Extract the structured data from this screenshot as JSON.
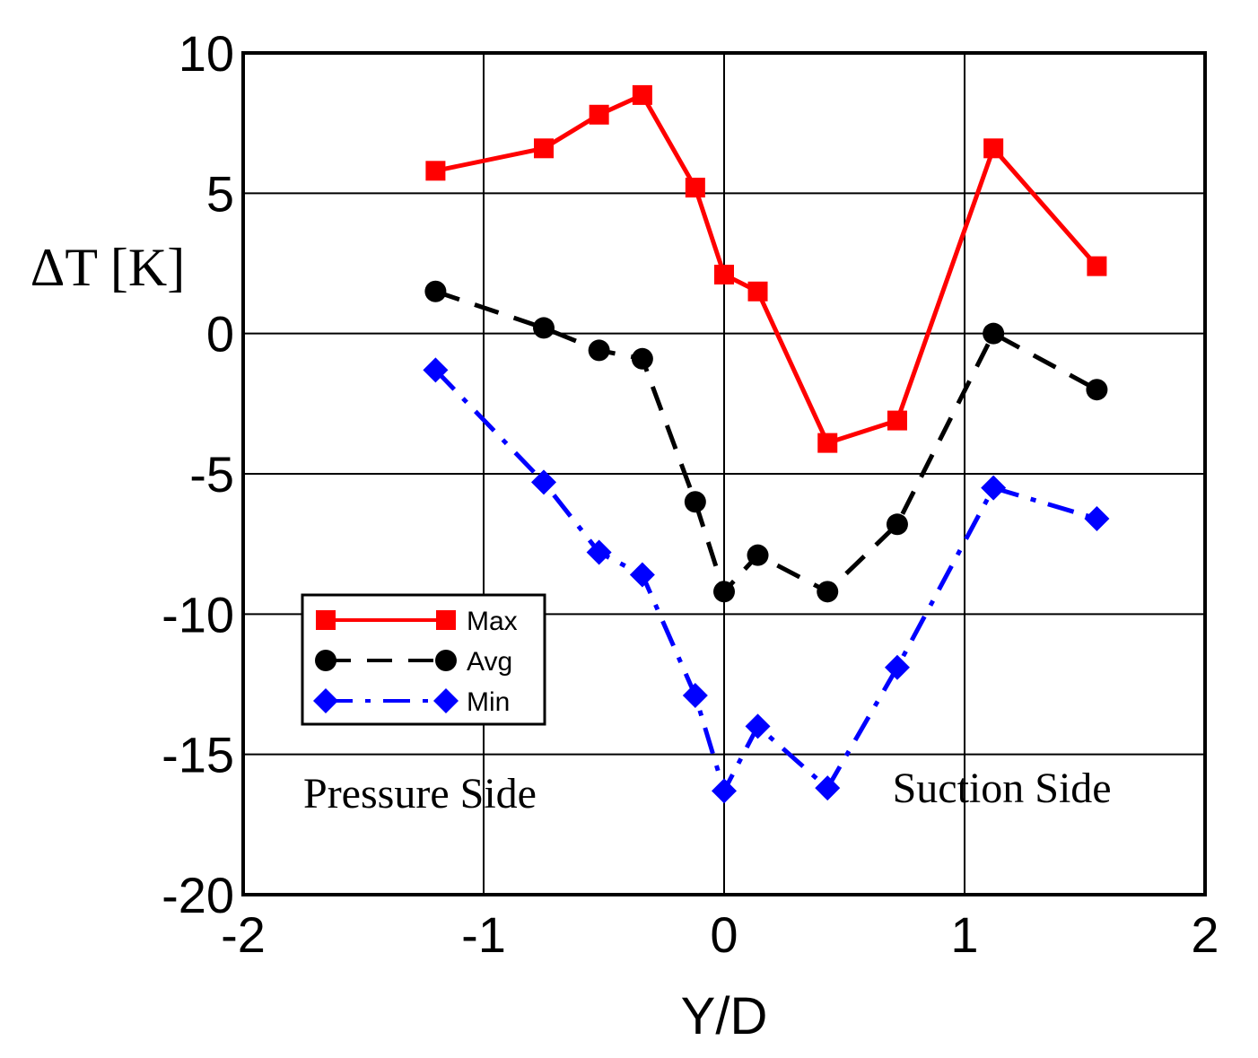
{
  "chart_data": {
    "type": "line",
    "title": "",
    "xlabel": "Y/D",
    "ylabel": "ΔT [K]",
    "xlim": [
      -2,
      2
    ],
    "ylim": [
      -20,
      10
    ],
    "xticks": [
      -2,
      -1,
      0,
      1,
      2
    ],
    "yticks": [
      10,
      5,
      0,
      -5,
      -10,
      -15,
      -20
    ],
    "xtick_labels": [
      "-2",
      "-1",
      "0",
      "1",
      "2"
    ],
    "ytick_labels": [
      "10",
      "5",
      "0",
      "-5",
      "-10",
      "-15",
      "-20"
    ],
    "grid": true,
    "legend_position": "lower-left",
    "annotations": [
      {
        "text": "Pressure Side",
        "x": -1.75,
        "y": -16.9
      },
      {
        "text": "Suction Side",
        "x": 0.7,
        "y": -16.7
      }
    ],
    "series": [
      {
        "name": "Max",
        "color": "#ff0000",
        "dash": "solid",
        "marker": "square",
        "x": [
          -1.2,
          -0.75,
          -0.52,
          -0.34,
          -0.12,
          0.0,
          0.14,
          0.43,
          0.72,
          1.12,
          1.55
        ],
        "y": [
          5.8,
          6.6,
          7.8,
          8.5,
          5.2,
          2.1,
          1.5,
          -3.9,
          -3.1,
          6.6,
          2.4
        ]
      },
      {
        "name": "Avg",
        "color": "#000000",
        "dash": "dashed",
        "marker": "circle",
        "x": [
          -1.2,
          -0.75,
          -0.52,
          -0.34,
          -0.12,
          0.0,
          0.14,
          0.43,
          0.72,
          1.12,
          1.55
        ],
        "y": [
          1.5,
          0.2,
          -0.6,
          -0.9,
          -6.0,
          -9.2,
          -7.9,
          -9.2,
          -6.8,
          0.0,
          -2.0
        ]
      },
      {
        "name": "Min",
        "color": "#0000ff",
        "dash": "dashdot",
        "marker": "diamond",
        "x": [
          -1.2,
          -0.75,
          -0.52,
          -0.34,
          -0.12,
          0.0,
          0.14,
          0.43,
          0.72,
          1.12,
          1.55
        ],
        "y": [
          -1.3,
          -5.3,
          -7.8,
          -8.6,
          -12.9,
          -16.3,
          -14.0,
          -16.2,
          -11.9,
          -5.5,
          -6.6
        ]
      }
    ]
  }
}
